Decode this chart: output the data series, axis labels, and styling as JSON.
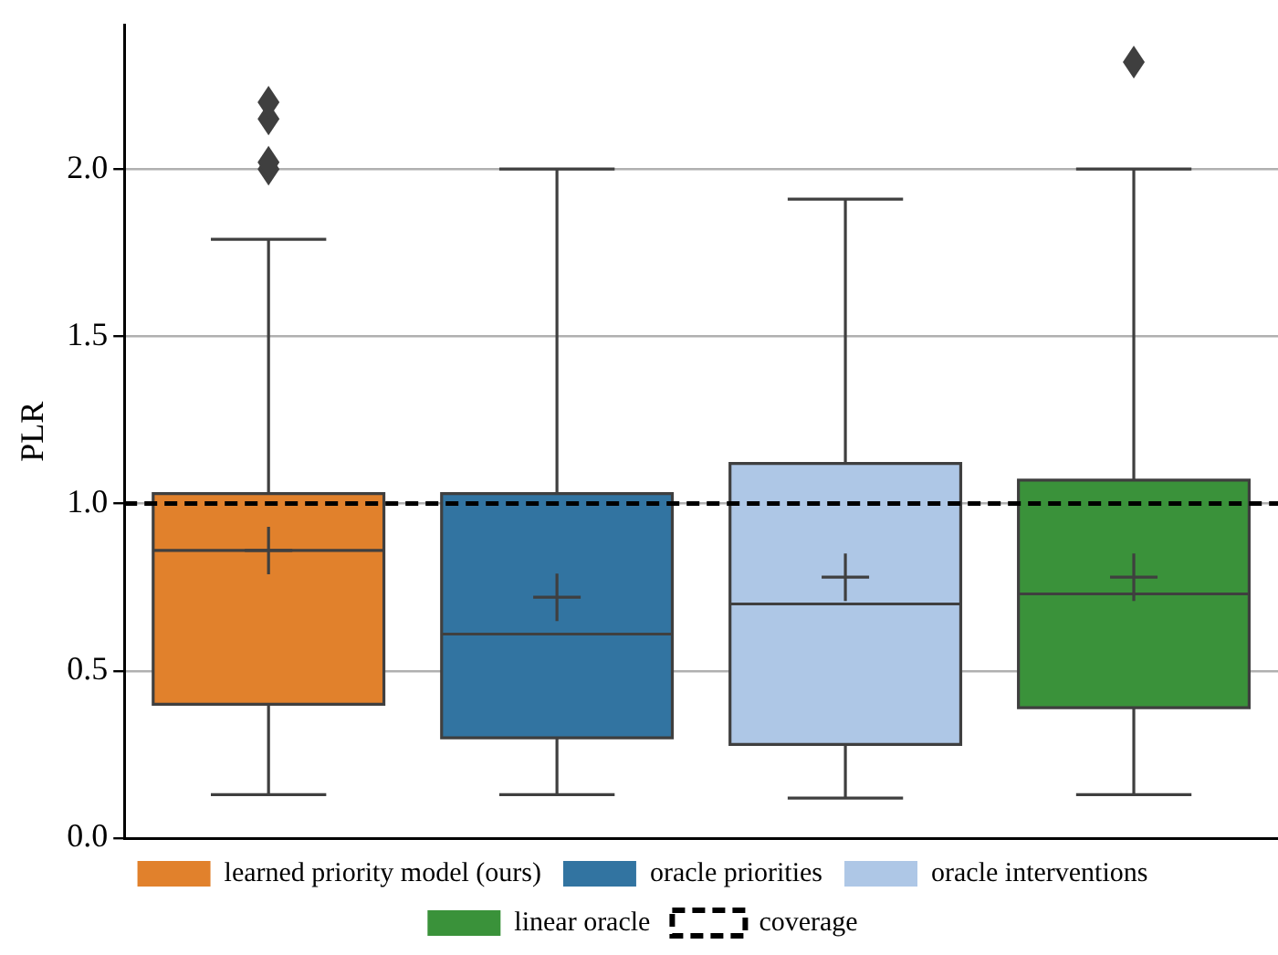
{
  "chart_data": {
    "type": "box",
    "ylabel": "PLR",
    "categories": [
      null,
      null,
      null,
      null
    ],
    "series": [
      {
        "name": "learned priority model (ours)",
        "color": "#e1812c",
        "boxes": [
          {
            "low": 0.13,
            "q1": 0.4,
            "median": 0.86,
            "q3": 1.03,
            "high": 1.79,
            "mean": 0.86,
            "outliers": [
              2.0,
              2.02,
              2.15,
              2.2
            ]
          },
          null,
          null,
          null
        ]
      },
      {
        "name": "oracle priorities",
        "color": "#3274a1",
        "boxes": [
          null,
          {
            "low": 0.13,
            "q1": 0.3,
            "median": 0.61,
            "q3": 1.03,
            "high": 2.0,
            "mean": 0.72
          },
          null,
          null
        ]
      },
      {
        "name": "oracle interventions",
        "color": "#aec7e6",
        "boxes": [
          null,
          null,
          {
            "low": 0.12,
            "q1": 0.28,
            "median": 0.7,
            "q3": 1.12,
            "high": 1.91,
            "mean": 0.78
          },
          null
        ]
      },
      {
        "name": "linear oracle",
        "color": "#3a923a",
        "boxes": [
          null,
          null,
          null,
          {
            "low": 0.13,
            "q1": 0.39,
            "median": 0.73,
            "q3": 1.07,
            "high": 2.0,
            "mean": 0.78,
            "outliers": [
              2.32
            ]
          }
        ]
      }
    ],
    "ylim": [
      0,
      2.43
    ],
    "yticks": [
      {
        "value": 0,
        "label": "0.0"
      },
      {
        "value": 0.5,
        "label": "0.5"
      },
      {
        "value": 1,
        "label": "1.0"
      },
      {
        "value": 1.5,
        "label": "1.5"
      },
      {
        "value": 2,
        "label": "2.0"
      }
    ],
    "ref_lines": [
      {
        "axis": "y",
        "value": 1,
        "label": "coverage",
        "color": "#000000",
        "line_style": "dashed"
      }
    ],
    "grid": "y",
    "legend": "bottom",
    "marker": "cross",
    "tick_labels": "y"
  }
}
